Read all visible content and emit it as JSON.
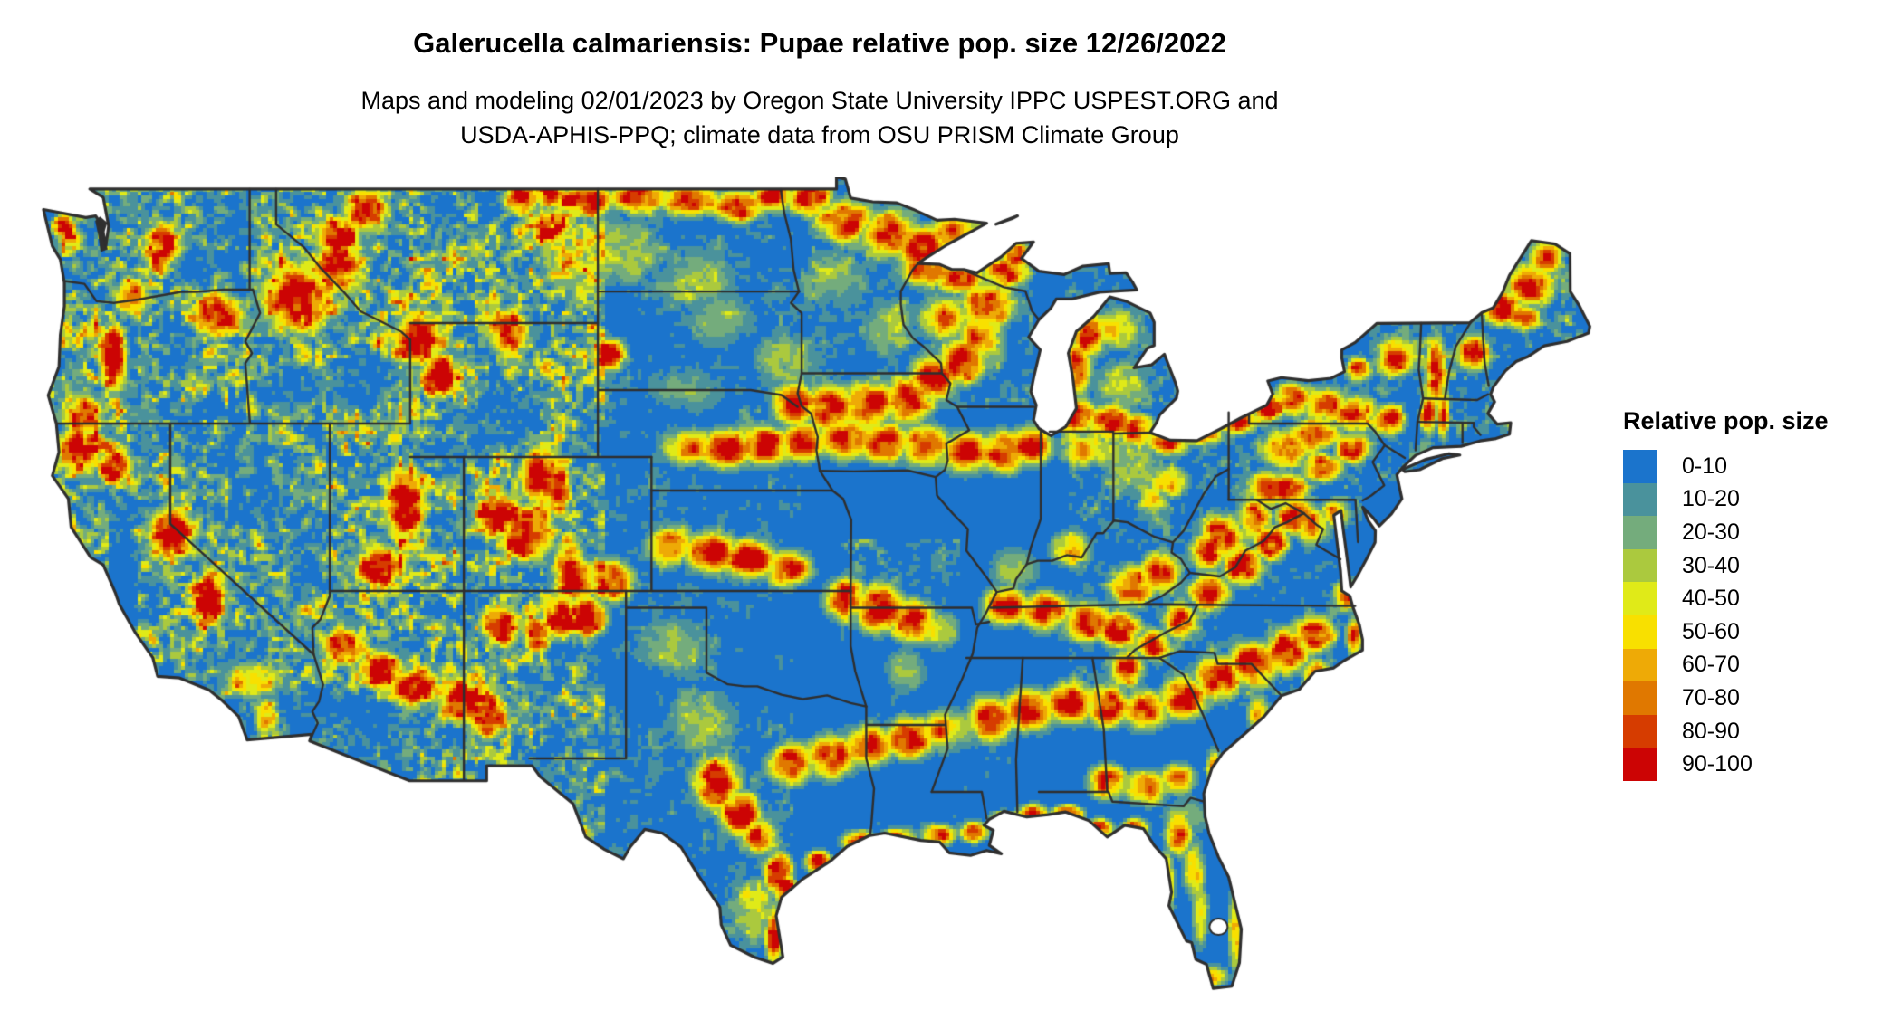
{
  "figure": {
    "title": "Galerucella calmariensis: Pupae relative pop. size 12/26/2022",
    "subtitle": [
      "Maps and modeling 02/01/2023 by Oregon State University IPPC USPEST.ORG and",
      "USDA-APHIS-PPQ; climate data from OSU PRISM Climate Group"
    ]
  },
  "legend": {
    "title": "Relative pop. size",
    "items": [
      {
        "label": "0-10",
        "color": "#1b74cc"
      },
      {
        "label": "10-20",
        "color": "#4a929c"
      },
      {
        "label": "20-30",
        "color": "#74ac7c"
      },
      {
        "label": "30-40",
        "color": "#abc93e"
      },
      {
        "label": "40-50",
        "color": "#e0ea18"
      },
      {
        "label": "50-60",
        "color": "#f8e000"
      },
      {
        "label": "60-70",
        "color": "#eeaa06"
      },
      {
        "label": "70-80",
        "color": "#e07800"
      },
      {
        "label": "80-90",
        "color": "#d63c00"
      },
      {
        "label": "90-100",
        "color": "#cc0404"
      }
    ]
  },
  "map": {
    "border_color": "#2f2f2f",
    "water_color": "#ffffff"
  }
}
